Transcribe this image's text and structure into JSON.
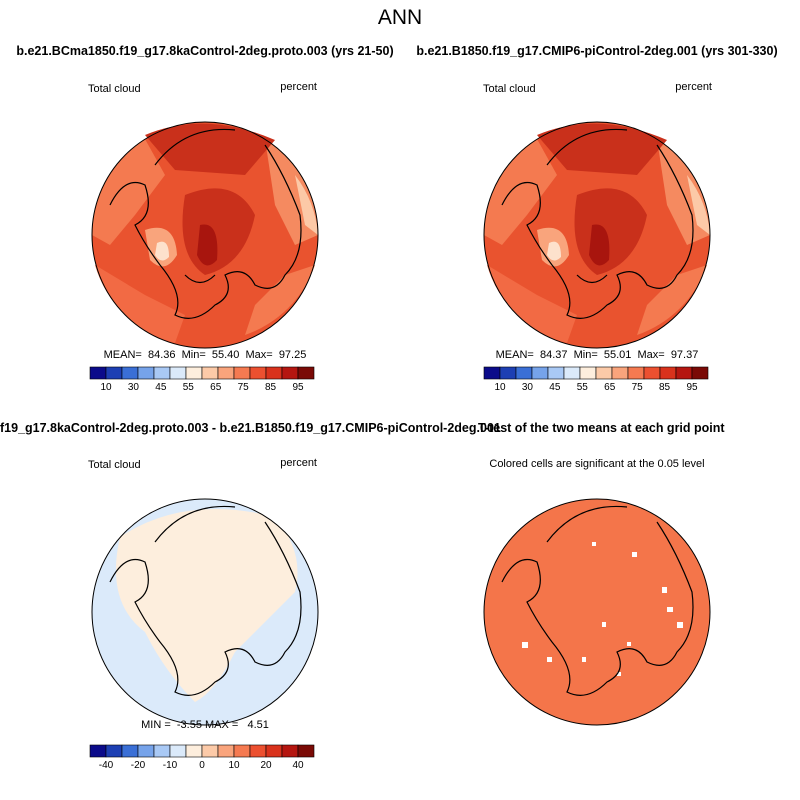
{
  "title": "ANN",
  "panels": [
    {
      "title": "b.e21.BCma1850.f19_g17.8kaControl-2deg.proto.003 (yrs 21-50)",
      "left_label": "Total cloud",
      "right_label": "percent",
      "stats": "MEAN=  84.36  Min=  55.40  Max=  97.25",
      "colorbar": {
        "colors": [
          "#0b0b8a",
          "#1d3fb3",
          "#3a6fd6",
          "#76a3ea",
          "#a9c9f5",
          "#dbeafa",
          "#fdeedd",
          "#fccaa8",
          "#f9a47c",
          "#f57a51",
          "#ec5030",
          "#d9321c",
          "#b51610",
          "#7a0a06"
        ],
        "labels": [
          "10",
          "30",
          "45",
          "55",
          "65",
          "75",
          "85",
          "95"
        ]
      }
    },
    {
      "title": "b.e21.B1850.f19_g17.CMIP6-piControl-2deg.001 (yrs 301-330)",
      "left_label": "Total cloud",
      "right_label": "percent",
      "stats": "MEAN=  84.37  Min=  55.01  Max=  97.37",
      "colorbar": {
        "colors": [
          "#0b0b8a",
          "#1d3fb3",
          "#3a6fd6",
          "#76a3ea",
          "#a9c9f5",
          "#dbeafa",
          "#fdeedd",
          "#fccaa8",
          "#f9a47c",
          "#f57a51",
          "#ec5030",
          "#d9321c",
          "#b51610",
          "#7a0a06"
        ],
        "labels": [
          "10",
          "30",
          "45",
          "55",
          "65",
          "75",
          "85",
          "95"
        ]
      }
    },
    {
      "title": "f19_g17.8kaControl-2deg.proto.003 - b.e21.B1850.f19_g17.CMIP6-piControl-2deg.001",
      "left_label": "Total cloud",
      "right_label": "percent",
      "stats": "MIN =  -3.55 MAX =   4.51",
      "colorbar": {
        "colors": [
          "#0b0b8a",
          "#1d3fb3",
          "#3a6fd6",
          "#76a3ea",
          "#a9c9f5",
          "#dbeafa",
          "#fdeedd",
          "#fccaa8",
          "#f9a47c",
          "#f57a51",
          "#ec5030",
          "#d9321c",
          "#b51610",
          "#7a0a06"
        ],
        "labels": [
          "-40",
          "-20",
          "-10",
          "0",
          "10",
          "20",
          "40"
        ]
      }
    },
    {
      "title": "T-test of the two means at each grid point",
      "subtitle": "Colored cells are significant at the 0.05 level"
    }
  ]
}
